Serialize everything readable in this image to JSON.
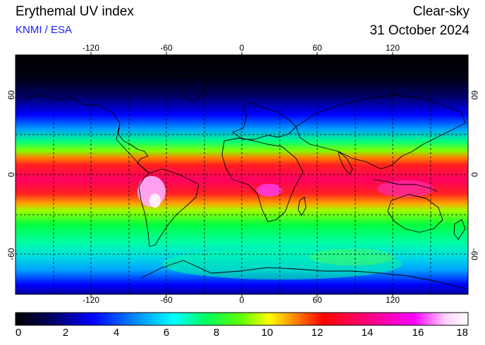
{
  "header": {
    "title": "Erythemal UV index",
    "subtitle": "KNMI / ESA",
    "condition": "Clear-sky",
    "date": "31 October 2024"
  },
  "map": {
    "lon_ticks": [
      "-120",
      "-60",
      "0",
      "60",
      "120"
    ],
    "lat_ticks": [
      "60",
      "0",
      "-60"
    ],
    "lon_range": [
      -180,
      180
    ],
    "lat_range": [
      -90,
      90
    ],
    "graticule": "dashed, every 30 degrees"
  },
  "colorbar": {
    "labels": [
      "0",
      "2",
      "4",
      "6",
      "8",
      "10",
      "12",
      "14",
      "16",
      "18"
    ],
    "range": [
      0,
      18
    ],
    "colors": [
      "#000000",
      "#000060",
      "#0000ff",
      "#00a0ff",
      "#00ffff",
      "#00ff60",
      "#60ff00",
      "#ffff00",
      "#ff8000",
      "#ff0000",
      "#ff0080",
      "#ff00ff",
      "#ffd0ff",
      "#ffffff"
    ]
  }
}
